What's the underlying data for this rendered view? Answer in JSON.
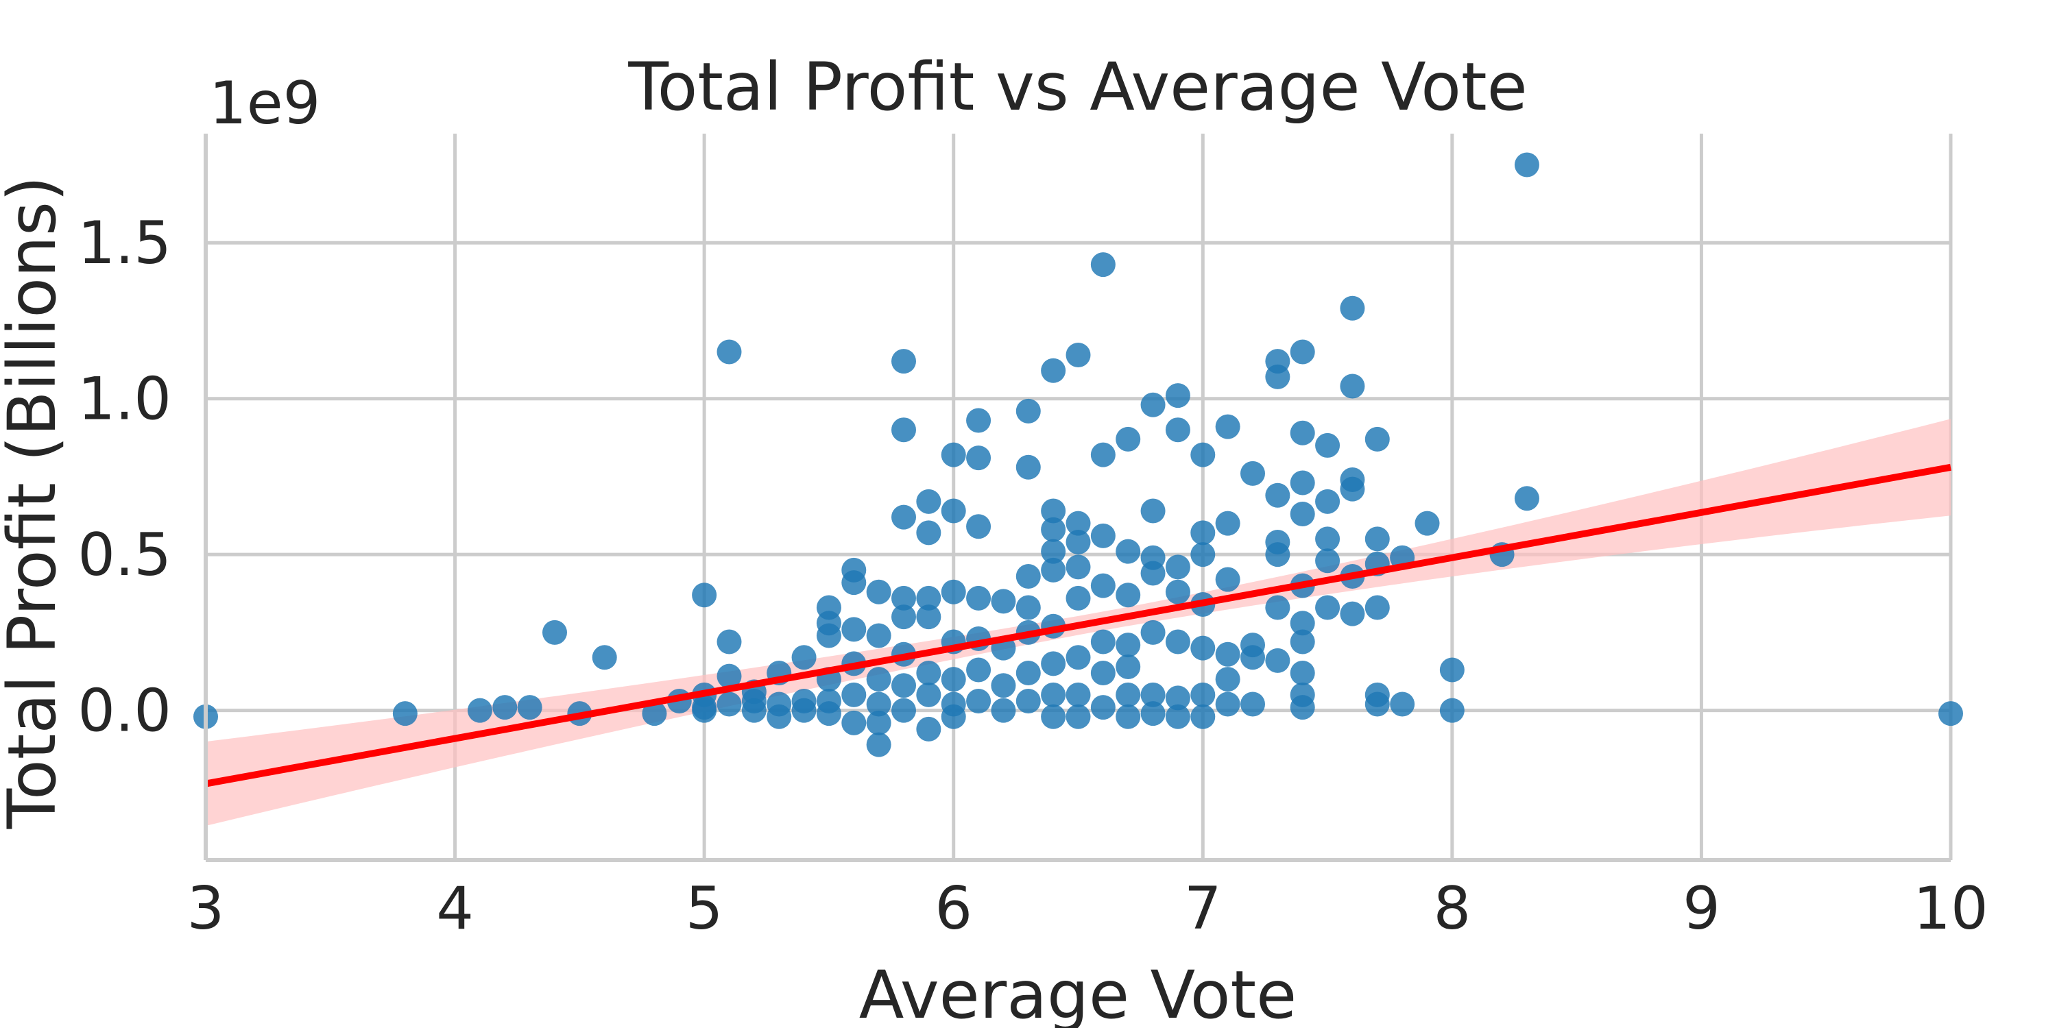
{
  "chart_data": {
    "type": "scatter",
    "title": "Total Profit vs Average Vote",
    "xlabel": "Average Vote",
    "ylabel": "Total Profit (Billions)",
    "y_offset_label": "1e9",
    "xlim": [
      3,
      10
    ],
    "ylim": [
      -0.48,
      1.85
    ],
    "x_ticks": [
      3,
      4,
      5,
      6,
      7,
      8,
      9,
      10
    ],
    "x_tick_labels": [
      "3",
      "4",
      "5",
      "6",
      "7",
      "8",
      "9",
      "10"
    ],
    "y_ticks": [
      0.0,
      0.5,
      1.0,
      1.5
    ],
    "y_tick_labels": [
      "0.0",
      "0.5",
      "1.0",
      "1.5"
    ],
    "grid": true,
    "colors": {
      "points": "#1f77b4",
      "regression_line": "#ff0000",
      "confidence_band": "#ffc0c0",
      "grid": "#cccccc",
      "text": "#262626"
    },
    "regression": {
      "intercept": -0.67,
      "slope": 0.145,
      "ci_at_x3": [
        -0.38,
        -0.11
      ],
      "ci_at_x10": [
        0.63,
        0.94
      ]
    },
    "points": [
      [
        3.0,
        -0.02
      ],
      [
        3.8,
        -0.01
      ],
      [
        4.1,
        0.0
      ],
      [
        4.2,
        0.01
      ],
      [
        4.3,
        0.01
      ],
      [
        4.4,
        0.25
      ],
      [
        4.5,
        -0.01
      ],
      [
        4.6,
        0.17
      ],
      [
        4.8,
        -0.01
      ],
      [
        4.9,
        0.03
      ],
      [
        5.0,
        0.37
      ],
      [
        5.0,
        0.05
      ],
      [
        5.0,
        0.01
      ],
      [
        5.0,
        0.0
      ],
      [
        5.1,
        1.15
      ],
      [
        5.1,
        0.22
      ],
      [
        5.1,
        0.11
      ],
      [
        5.1,
        0.02
      ],
      [
        5.2,
        0.06
      ],
      [
        5.2,
        0.0
      ],
      [
        5.2,
        0.03
      ],
      [
        5.3,
        0.12
      ],
      [
        5.3,
        0.02
      ],
      [
        5.3,
        -0.02
      ],
      [
        5.4,
        0.17
      ],
      [
        5.4,
        0.03
      ],
      [
        5.4,
        0.0
      ],
      [
        5.5,
        0.33
      ],
      [
        5.5,
        0.28
      ],
      [
        5.5,
        0.24
      ],
      [
        5.5,
        0.1
      ],
      [
        5.5,
        0.03
      ],
      [
        5.5,
        -0.01
      ],
      [
        5.6,
        0.45
      ],
      [
        5.6,
        0.41
      ],
      [
        5.6,
        0.26
      ],
      [
        5.6,
        0.15
      ],
      [
        5.6,
        0.05
      ],
      [
        5.6,
        -0.04
      ],
      [
        5.7,
        0.38
      ],
      [
        5.7,
        0.24
      ],
      [
        5.7,
        0.1
      ],
      [
        5.7,
        0.02
      ],
      [
        5.7,
        -0.04
      ],
      [
        5.7,
        -0.11
      ],
      [
        5.8,
        1.12
      ],
      [
        5.8,
        0.9
      ],
      [
        5.8,
        0.62
      ],
      [
        5.8,
        0.36
      ],
      [
        5.8,
        0.3
      ],
      [
        5.8,
        0.18
      ],
      [
        5.8,
        0.08
      ],
      [
        5.8,
        0.0
      ],
      [
        5.9,
        0.67
      ],
      [
        5.9,
        0.57
      ],
      [
        5.9,
        0.36
      ],
      [
        5.9,
        0.3
      ],
      [
        5.9,
        0.12
      ],
      [
        5.9,
        0.05
      ],
      [
        5.9,
        -0.06
      ],
      [
        6.0,
        0.82
      ],
      [
        6.0,
        0.64
      ],
      [
        6.0,
        0.38
      ],
      [
        6.0,
        0.22
      ],
      [
        6.0,
        0.1
      ],
      [
        6.0,
        0.02
      ],
      [
        6.0,
        -0.02
      ],
      [
        6.1,
        0.93
      ],
      [
        6.1,
        0.81
      ],
      [
        6.1,
        0.59
      ],
      [
        6.1,
        0.36
      ],
      [
        6.1,
        0.23
      ],
      [
        6.1,
        0.13
      ],
      [
        6.1,
        0.03
      ],
      [
        6.2,
        0.35
      ],
      [
        6.2,
        0.2
      ],
      [
        6.2,
        0.08
      ],
      [
        6.2,
        0.0
      ],
      [
        6.3,
        0.96
      ],
      [
        6.3,
        0.78
      ],
      [
        6.3,
        0.43
      ],
      [
        6.3,
        0.33
      ],
      [
        6.3,
        0.25
      ],
      [
        6.3,
        0.12
      ],
      [
        6.3,
        0.03
      ],
      [
        6.4,
        1.09
      ],
      [
        6.4,
        0.64
      ],
      [
        6.4,
        0.58
      ],
      [
        6.4,
        0.51
      ],
      [
        6.4,
        0.45
      ],
      [
        6.4,
        0.27
      ],
      [
        6.4,
        0.15
      ],
      [
        6.4,
        0.05
      ],
      [
        6.4,
        -0.02
      ],
      [
        6.5,
        1.14
      ],
      [
        6.5,
        0.6
      ],
      [
        6.5,
        0.54
      ],
      [
        6.5,
        0.46
      ],
      [
        6.5,
        0.36
      ],
      [
        6.5,
        0.17
      ],
      [
        6.5,
        0.05
      ],
      [
        6.5,
        -0.02
      ],
      [
        6.6,
        1.43
      ],
      [
        6.6,
        0.82
      ],
      [
        6.6,
        0.56
      ],
      [
        6.6,
        0.4
      ],
      [
        6.6,
        0.22
      ],
      [
        6.6,
        0.12
      ],
      [
        6.6,
        0.01
      ],
      [
        6.7,
        0.87
      ],
      [
        6.7,
        0.51
      ],
      [
        6.7,
        0.37
      ],
      [
        6.7,
        0.21
      ],
      [
        6.7,
        0.14
      ],
      [
        6.7,
        0.05
      ],
      [
        6.7,
        -0.02
      ],
      [
        6.8,
        0.98
      ],
      [
        6.8,
        0.64
      ],
      [
        6.8,
        0.49
      ],
      [
        6.8,
        0.44
      ],
      [
        6.8,
        0.25
      ],
      [
        6.8,
        0.05
      ],
      [
        6.8,
        -0.01
      ],
      [
        6.9,
        1.01
      ],
      [
        6.9,
        0.9
      ],
      [
        6.9,
        0.46
      ],
      [
        6.9,
        0.38
      ],
      [
        6.9,
        0.22
      ],
      [
        6.9,
        0.04
      ],
      [
        6.9,
        -0.02
      ],
      [
        7.0,
        0.82
      ],
      [
        7.0,
        0.57
      ],
      [
        7.0,
        0.5
      ],
      [
        7.0,
        0.34
      ],
      [
        7.0,
        0.2
      ],
      [
        7.0,
        0.05
      ],
      [
        7.0,
        -0.02
      ],
      [
        7.1,
        0.91
      ],
      [
        7.1,
        0.6
      ],
      [
        7.1,
        0.42
      ],
      [
        7.1,
        0.18
      ],
      [
        7.1,
        0.1
      ],
      [
        7.1,
        0.02
      ],
      [
        7.2,
        0.76
      ],
      [
        7.2,
        0.21
      ],
      [
        7.2,
        0.17
      ],
      [
        7.2,
        0.02
      ],
      [
        7.3,
        1.12
      ],
      [
        7.3,
        1.07
      ],
      [
        7.3,
        0.69
      ],
      [
        7.3,
        0.54
      ],
      [
        7.3,
        0.5
      ],
      [
        7.3,
        0.33
      ],
      [
        7.3,
        0.16
      ],
      [
        7.4,
        1.15
      ],
      [
        7.4,
        0.89
      ],
      [
        7.4,
        0.73
      ],
      [
        7.4,
        0.63
      ],
      [
        7.4,
        0.4
      ],
      [
        7.4,
        0.28
      ],
      [
        7.4,
        0.22
      ],
      [
        7.4,
        0.12
      ],
      [
        7.4,
        0.05
      ],
      [
        7.4,
        0.01
      ],
      [
        7.5,
        0.85
      ],
      [
        7.5,
        0.67
      ],
      [
        7.5,
        0.55
      ],
      [
        7.5,
        0.48
      ],
      [
        7.5,
        0.33
      ],
      [
        7.6,
        1.29
      ],
      [
        7.6,
        1.04
      ],
      [
        7.6,
        0.74
      ],
      [
        7.6,
        0.71
      ],
      [
        7.6,
        0.43
      ],
      [
        7.6,
        0.31
      ],
      [
        7.7,
        0.87
      ],
      [
        7.7,
        0.55
      ],
      [
        7.7,
        0.47
      ],
      [
        7.7,
        0.33
      ],
      [
        7.7,
        0.05
      ],
      [
        7.7,
        0.02
      ],
      [
        7.8,
        0.49
      ],
      [
        7.8,
        0.02
      ],
      [
        7.9,
        0.6
      ],
      [
        8.0,
        0.13
      ],
      [
        8.0,
        0.0
      ],
      [
        8.2,
        0.5
      ],
      [
        8.3,
        1.75
      ],
      [
        8.3,
        0.68
      ],
      [
        10.0,
        -0.01
      ]
    ]
  }
}
